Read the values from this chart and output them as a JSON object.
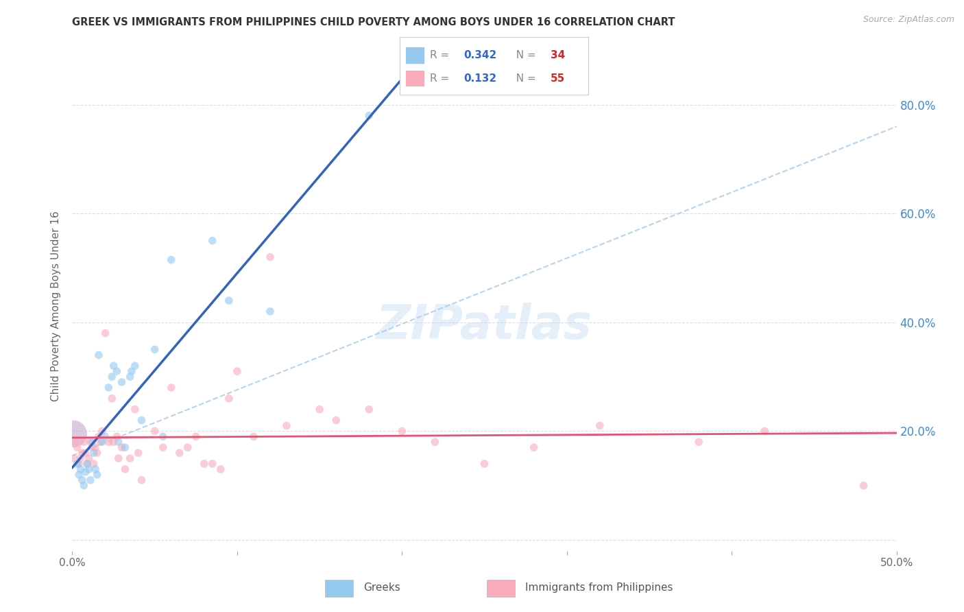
{
  "title": "GREEK VS IMMIGRANTS FROM PHILIPPINES CHILD POVERTY AMONG BOYS UNDER 16 CORRELATION CHART",
  "source": "Source: ZipAtlas.com",
  "ylabel": "Child Poverty Among Boys Under 16",
  "xlim": [
    0.0,
    50.0
  ],
  "ylim": [
    -2.0,
    88.0
  ],
  "yticks": [
    0.0,
    20.0,
    40.0,
    60.0,
    80.0
  ],
  "ytick_right_labels": [
    "",
    "20.0%",
    "40.0%",
    "60.0%",
    "80.0%"
  ],
  "xticks": [
    0.0,
    10.0,
    20.0,
    30.0,
    40.0,
    50.0
  ],
  "xtick_labels": [
    "0.0%",
    "",
    "",
    "",
    "",
    "50.0%"
  ],
  "color_greek": "#95C8EF",
  "color_phil": "#F9AABB",
  "color_greek_line": "#3264BE",
  "color_phil_line": "#E85070",
  "color_dashed": "#AACCEE",
  "color_right_labels": "#4488CC",
  "color_title": "#333333",
  "color_grid": "#DEDEDE",
  "color_watermark": "#C0D8F0",
  "watermark_text": "ZIPatlas",
  "legend_r1_label": "R = ",
  "legend_r1_val": "0.342",
  "legend_n1_label": "N = ",
  "legend_n1_val": "34",
  "legend_r2_label": "R =  ",
  "legend_r2_val": "0.132",
  "legend_n2_label": "N = ",
  "legend_n2_val": "55",
  "legend_r_color": "#3366CC",
  "legend_n_color": "#DD2222",
  "greek_label": "Greeks",
  "phil_label": "Immigrants from Philippines",
  "greek_x": [
    0.3,
    0.4,
    0.5,
    0.6,
    0.7,
    0.8,
    0.9,
    1.0,
    1.1,
    1.2,
    1.3,
    1.4,
    1.5,
    1.6,
    1.8,
    2.0,
    2.2,
    2.4,
    2.5,
    2.7,
    2.8,
    3.0,
    3.2,
    3.5,
    3.6,
    3.8,
    4.2,
    5.0,
    5.5,
    6.0,
    8.5,
    9.5,
    12.0,
    18.0
  ],
  "greek_y": [
    14.0,
    12.0,
    13.0,
    11.0,
    10.0,
    12.5,
    14.0,
    13.0,
    11.0,
    18.0,
    16.0,
    13.0,
    12.0,
    34.0,
    18.0,
    19.0,
    28.0,
    30.0,
    32.0,
    31.0,
    18.0,
    29.0,
    17.0,
    30.0,
    31.0,
    32.0,
    22.0,
    35.0,
    19.0,
    51.5,
    55.0,
    44.0,
    42.0,
    78.0
  ],
  "phil_x": [
    0.1,
    0.2,
    0.3,
    0.4,
    0.5,
    0.6,
    0.7,
    0.8,
    0.9,
    1.0,
    1.1,
    1.2,
    1.3,
    1.4,
    1.5,
    1.6,
    1.7,
    1.8,
    2.0,
    2.2,
    2.4,
    2.5,
    2.7,
    2.8,
    3.0,
    3.2,
    3.5,
    3.8,
    4.0,
    4.2,
    5.0,
    5.5,
    6.0,
    6.5,
    7.0,
    7.5,
    8.0,
    8.5,
    9.0,
    9.5,
    10.0,
    11.0,
    12.0,
    13.0,
    15.0,
    16.0,
    18.0,
    20.0,
    22.0,
    25.0,
    28.0,
    32.0,
    38.0,
    42.0,
    48.0
  ],
  "phil_y": [
    15.0,
    18.0,
    17.0,
    14.0,
    15.0,
    16.0,
    18.0,
    16.0,
    14.0,
    15.0,
    18.0,
    17.0,
    14.0,
    17.0,
    16.0,
    19.0,
    18.0,
    20.0,
    38.0,
    18.0,
    26.0,
    18.0,
    19.0,
    15.0,
    17.0,
    13.0,
    15.0,
    24.0,
    16.0,
    11.0,
    20.0,
    17.0,
    28.0,
    16.0,
    17.0,
    19.0,
    14.0,
    14.0,
    13.0,
    26.0,
    31.0,
    19.0,
    52.0,
    21.0,
    24.0,
    22.0,
    24.0,
    20.0,
    18.0,
    14.0,
    17.0,
    21.0,
    18.0,
    20.0,
    10.0
  ],
  "large_bubble_x": 0.08,
  "large_bubble_y": 19.5,
  "large_bubble_size": 800,
  "large_bubble_color": "#C0A0C8",
  "dot_size": 70,
  "dot_alpha": 0.6,
  "dashed_x0": 0.0,
  "dashed_y0": 15.5,
  "dashed_x1": 50.0,
  "dashed_y1": 76.0,
  "background": "#FFFFFF",
  "figwidth": 14.06,
  "figheight": 8.92,
  "dpi": 100
}
